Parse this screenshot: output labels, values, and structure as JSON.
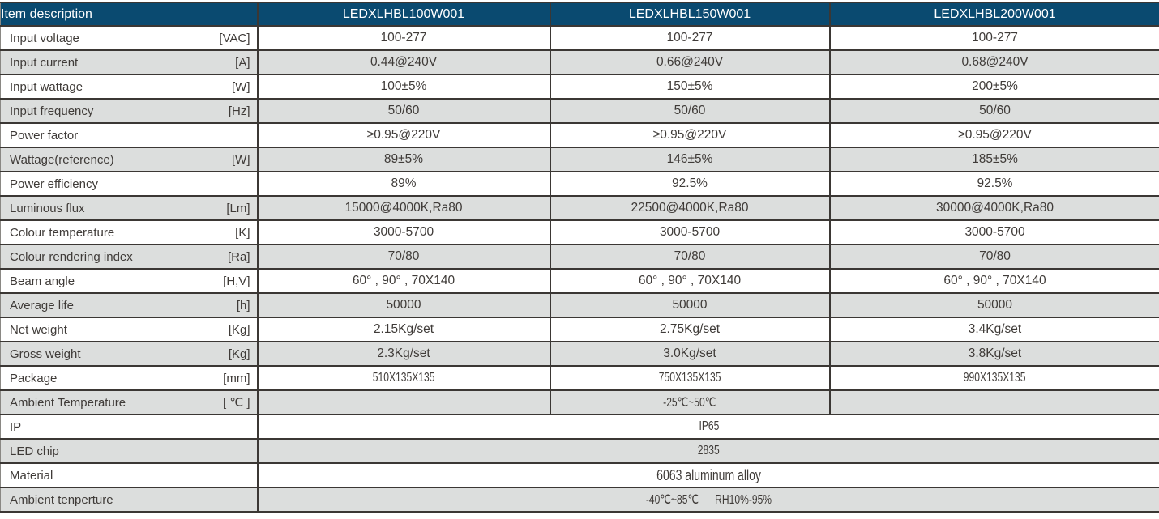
{
  "header": {
    "item_label": "Item description",
    "models": [
      "LEDXLHBL100W001",
      "LEDXLHBL150W001",
      "LEDXLHBL200W001"
    ]
  },
  "colors": {
    "header_bg": "#0a4a70",
    "stripe_bg": "#dcdedd",
    "border": "#3b3734",
    "header_text": "#ffffff",
    "body_text": "#3f3b38"
  },
  "rows": [
    {
      "label": "Input voltage",
      "unit": "[VAC]",
      "values": [
        "100-277",
        "100-277",
        "100-277"
      ]
    },
    {
      "label": "Input current",
      "unit": "[A]",
      "values": [
        "0.44@240V",
        "0.66@240V",
        "0.68@240V"
      ]
    },
    {
      "label": "Input wattage",
      "unit": "[W]",
      "values": [
        "100±5%",
        "150±5%",
        "200±5%"
      ]
    },
    {
      "label": "Input frequency",
      "unit": "[Hz]",
      "values": [
        "50/60",
        "50/60",
        "50/60"
      ]
    },
    {
      "label": "Power factor",
      "unit": "",
      "values": [
        "≥0.95@220V",
        "≥0.95@220V",
        "≥0.95@220V"
      ]
    },
    {
      "label": "Wattage(reference)",
      "unit": "[W]",
      "values": [
        "89±5%",
        "146±5%",
        "185±5%"
      ]
    },
    {
      "label": "Power efficiency",
      "unit": "",
      "values": [
        "89%",
        "92.5%",
        "92.5%"
      ]
    },
    {
      "label": "Luminous flux",
      "unit": "[Lm]",
      "values": [
        "15000@4000K,Ra80",
        "22500@4000K,Ra80",
        "30000@4000K,Ra80"
      ]
    },
    {
      "label": "Colour temperature",
      "unit": "[K]",
      "values": [
        "3000-5700",
        "3000-5700",
        "3000-5700"
      ]
    },
    {
      "label": "Colour rendering index",
      "unit": "[Ra]",
      "values": [
        "70/80",
        "70/80",
        "70/80"
      ]
    },
    {
      "label": "Beam angle",
      "unit": "[H,V]",
      "values": [
        "60° , 90° , 70X140",
        "60° , 90° , 70X140",
        "60° , 90° , 70X140"
      ]
    },
    {
      "label": "Average life",
      "unit": "[h]",
      "values": [
        "50000",
        "50000",
        "50000"
      ]
    },
    {
      "label": "Net weight",
      "unit": "[Kg]",
      "values": [
        "2.15Kg/set",
        "2.75Kg/set",
        "3.4Kg/set"
      ]
    },
    {
      "label": "Gross weight",
      "unit": "[Kg]",
      "values": [
        "2.3Kg/set",
        "3.0Kg/set",
        "3.8Kg/set"
      ]
    },
    {
      "label": "Package",
      "unit": "[mm]",
      "values": [
        "510X135X135",
        "750X135X135",
        "990X135X135"
      ],
      "condensed": true
    },
    {
      "label": "Ambient Temperature",
      "unit": "[ ℃ ]",
      "span": "middle",
      "value": "-25℃~50℃",
      "condensed": true
    },
    {
      "label": "IP",
      "unit": "",
      "span": "full",
      "value": "IP65",
      "condensed": true
    },
    {
      "label": "LED chip",
      "unit": "",
      "span": "full",
      "value": "2835",
      "condensed": true
    },
    {
      "label": "Material",
      "unit": "",
      "span": "full",
      "value": "6063 aluminum alloy",
      "condensed": true,
      "large": true
    },
    {
      "label": "Ambient tenperture",
      "unit": "",
      "span": "full",
      "value": "-40℃~85℃      RH10%-95%",
      "condensed": true
    }
  ]
}
